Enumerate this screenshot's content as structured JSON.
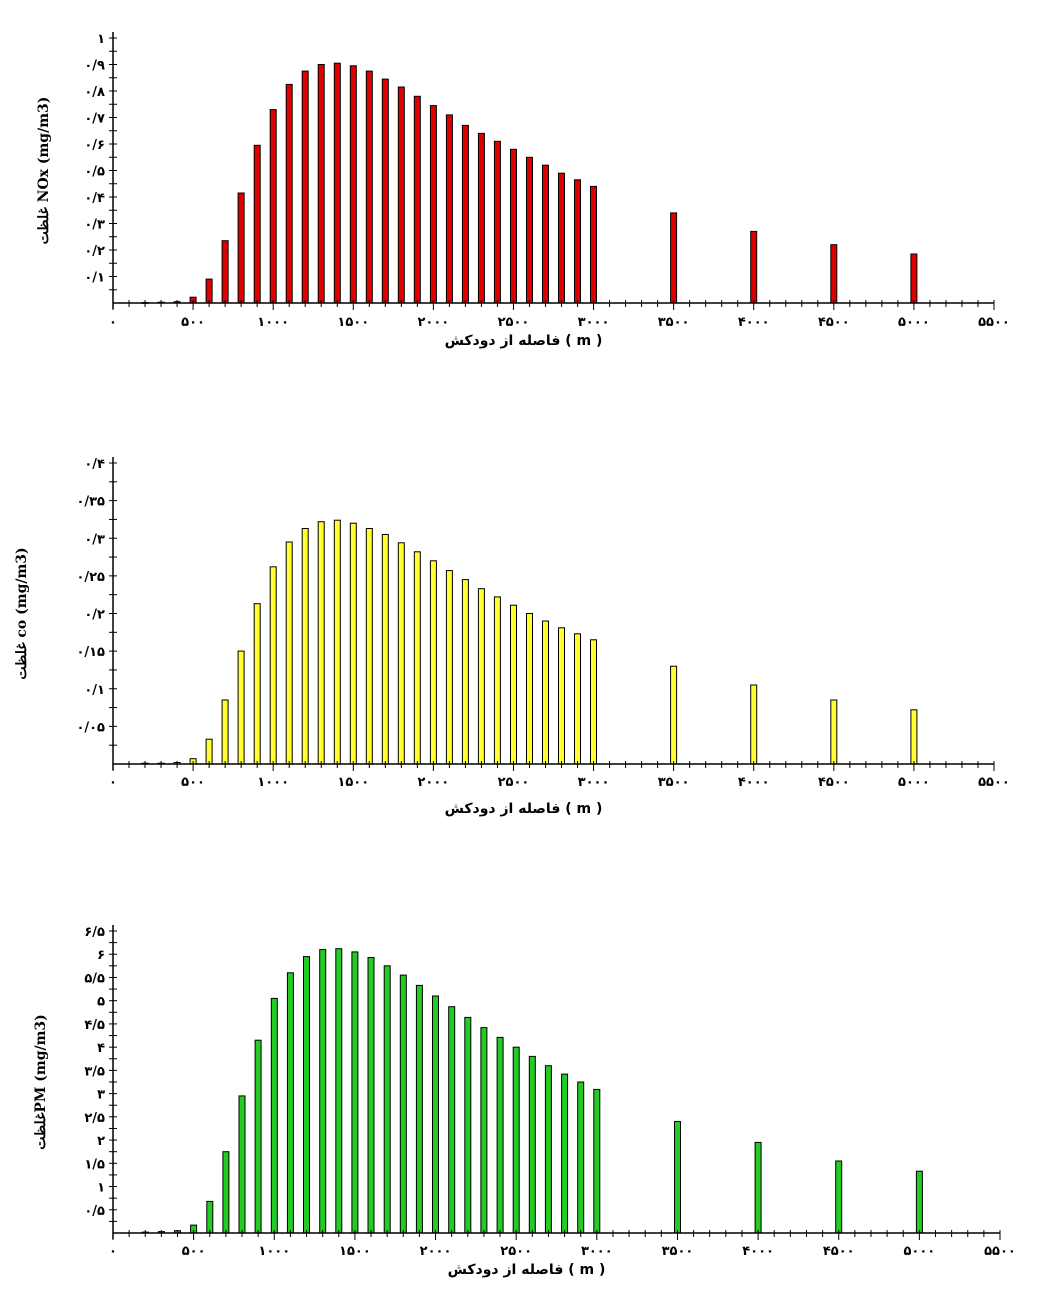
{
  "chart_data": [
    {
      "type": "bar",
      "color": "#dd0000",
      "ylabel": "غلظت NOx (mg/m3)",
      "xlabel": "فاصله از دودکش ( m )",
      "ylim": [
        0,
        1
      ],
      "xlim": [
        0,
        5500
      ],
      "yticks": [
        {
          "v": 0.1,
          "label": "۰/۱"
        },
        {
          "v": 0.2,
          "label": "۰/۲"
        },
        {
          "v": 0.3,
          "label": "۰/۳"
        },
        {
          "v": 0.4,
          "label": "۰/۴"
        },
        {
          "v": 0.5,
          "label": "۰/۵"
        },
        {
          "v": 0.6,
          "label": "۰/۶"
        },
        {
          "v": 0.7,
          "label": "۰/۷"
        },
        {
          "v": 0.8,
          "label": "۰/۸"
        },
        {
          "v": 0.9,
          "label": "۰/۹"
        },
        {
          "v": 1,
          "label": "۱"
        }
      ],
      "xticks": [
        {
          "v": 0,
          "label": "۰"
        },
        {
          "v": 500,
          "label": "۵۰۰"
        },
        {
          "v": 1000,
          "label": "۱۰۰۰"
        },
        {
          "v": 1500,
          "label": "۱۵۰۰"
        },
        {
          "v": 2000,
          "label": "۲۰۰۰"
        },
        {
          "v": 2500,
          "label": "۲۵۰۰"
        },
        {
          "v": 3000,
          "label": "۳۰۰۰"
        },
        {
          "v": 3500,
          "label": "۳۵۰۰"
        },
        {
          "v": 4000,
          "label": "۴۰۰۰"
        },
        {
          "v": 4500,
          "label": "۴۵۰۰"
        },
        {
          "v": 5000,
          "label": "۵۰۰۰"
        },
        {
          "v": 5500,
          "label": "۵۵۰۰"
        }
      ],
      "x": [
        200,
        300,
        400,
        500,
        600,
        700,
        800,
        900,
        1000,
        1100,
        1200,
        1300,
        1400,
        1500,
        1600,
        1700,
        1800,
        1900,
        2000,
        2100,
        2200,
        2300,
        2400,
        2500,
        2600,
        2700,
        2800,
        2900,
        3000,
        3500,
        4000,
        4500,
        5000
      ],
      "values": [
        0.002,
        0.003,
        0.005,
        0.022,
        0.09,
        0.235,
        0.415,
        0.595,
        0.73,
        0.825,
        0.875,
        0.9,
        0.905,
        0.895,
        0.875,
        0.845,
        0.815,
        0.78,
        0.745,
        0.71,
        0.67,
        0.64,
        0.61,
        0.58,
        0.55,
        0.52,
        0.49,
        0.465,
        0.44,
        0.34,
        0.27,
        0.22,
        0.185
      ]
    },
    {
      "type": "bar",
      "color": "#ffff33",
      "ylabel": "غلظت co (mg/m3)",
      "xlabel": "فاصله از دودکش ( m )",
      "ylim": [
        0,
        0.4
      ],
      "xlim": [
        0,
        5500
      ],
      "yticks": [
        {
          "v": 0.05,
          "label": "۰/۰۵"
        },
        {
          "v": 0.1,
          "label": "۰/۱"
        },
        {
          "v": 0.15,
          "label": "۰/۱۵"
        },
        {
          "v": 0.2,
          "label": "۰/۲"
        },
        {
          "v": 0.25,
          "label": "۰/۲۵"
        },
        {
          "v": 0.3,
          "label": "۰/۳"
        },
        {
          "v": 0.35,
          "label": "۰/۳۵"
        },
        {
          "v": 0.4,
          "label": "۰/۴"
        }
      ],
      "xticks": [
        {
          "v": 0,
          "label": "۰"
        },
        {
          "v": 500,
          "label": "۵۰۰"
        },
        {
          "v": 1000,
          "label": "۱۰۰۰"
        },
        {
          "v": 1500,
          "label": "۱۵۰۰"
        },
        {
          "v": 2000,
          "label": "۲۰۰۰"
        },
        {
          "v": 2500,
          "label": "۲۵۰۰"
        },
        {
          "v": 3000,
          "label": "۳۰۰۰"
        },
        {
          "v": 3500,
          "label": "۳۵۰۰"
        },
        {
          "v": 4000,
          "label": "۴۰۰۰"
        },
        {
          "v": 4500,
          "label": "۴۵۰۰"
        },
        {
          "v": 5000,
          "label": "۵۰۰۰"
        },
        {
          "v": 5500,
          "label": "۵۵۰۰"
        }
      ],
      "x": [
        200,
        300,
        400,
        500,
        600,
        700,
        800,
        900,
        1000,
        1100,
        1200,
        1300,
        1400,
        1500,
        1600,
        1700,
        1800,
        1900,
        2000,
        2100,
        2200,
        2300,
        2400,
        2500,
        2600,
        2700,
        2800,
        2900,
        3000,
        3500,
        4000,
        4500,
        5000
      ],
      "values": [
        0.001,
        0.001,
        0.002,
        0.007,
        0.033,
        0.085,
        0.15,
        0.213,
        0.262,
        0.295,
        0.313,
        0.322,
        0.324,
        0.32,
        0.313,
        0.305,
        0.294,
        0.282,
        0.27,
        0.257,
        0.245,
        0.233,
        0.222,
        0.211,
        0.2,
        0.19,
        0.181,
        0.173,
        0.165,
        0.13,
        0.105,
        0.085,
        0.072
      ]
    },
    {
      "type": "bar",
      "color": "#22cc22",
      "ylabel": "غلظتPM (mg/m3)",
      "xlabel": "فاصله از دودکش ( m )",
      "ylim": [
        0,
        6.5
      ],
      "xlim": [
        0,
        5500
      ],
      "yticks": [
        {
          "v": 0.5,
          "label": "۰/۵"
        },
        {
          "v": 1,
          "label": "۱"
        },
        {
          "v": 1.5,
          "label": "۱/۵"
        },
        {
          "v": 2,
          "label": "۲"
        },
        {
          "v": 2.5,
          "label": "۲/۵"
        },
        {
          "v": 3,
          "label": "۳"
        },
        {
          "v": 3.5,
          "label": "۳/۵"
        },
        {
          "v": 4,
          "label": "۴"
        },
        {
          "v": 4.5,
          "label": "۴/۵"
        },
        {
          "v": 5,
          "label": "۵"
        },
        {
          "v": 5.5,
          "label": "۵/۵"
        },
        {
          "v": 6,
          "label": "۶"
        },
        {
          "v": 6.5,
          "label": "۶/۵"
        }
      ],
      "xticks": [
        {
          "v": 0,
          "label": "۰"
        },
        {
          "v": 500,
          "label": "۵۰۰"
        },
        {
          "v": 1000,
          "label": "۱۰۰۰"
        },
        {
          "v": 1500,
          "label": "۱۵۰۰"
        },
        {
          "v": 2000,
          "label": "۲۰۰۰"
        },
        {
          "v": 2500,
          "label": "۲۵۰۰"
        },
        {
          "v": 3000,
          "label": "۳۰۰۰"
        },
        {
          "v": 3500,
          "label": "۳۵۰۰"
        },
        {
          "v": 4000,
          "label": "۴۰۰۰"
        },
        {
          "v": 4500,
          "label": "۴۵۰۰"
        },
        {
          "v": 5000,
          "label": "۵۰۰۰"
        },
        {
          "v": 5500,
          "label": "۵۵۰۰"
        }
      ],
      "x": [
        200,
        300,
        400,
        500,
        600,
        700,
        800,
        900,
        1000,
        1100,
        1200,
        1300,
        1400,
        1500,
        1600,
        1700,
        1800,
        1900,
        2000,
        2100,
        2200,
        2300,
        2400,
        2500,
        2600,
        2700,
        2800,
        2900,
        3000,
        3500,
        4000,
        4500,
        5000
      ],
      "values": [
        0.02,
        0.03,
        0.05,
        0.17,
        0.68,
        1.75,
        2.95,
        4.15,
        5.05,
        5.6,
        5.95,
        6.1,
        6.12,
        6.05,
        5.93,
        5.75,
        5.55,
        5.33,
        5.1,
        4.87,
        4.64,
        4.42,
        4.21,
        4.0,
        3.8,
        3.6,
        3.42,
        3.25,
        3.09,
        2.4,
        1.95,
        1.55,
        1.33
      ]
    }
  ]
}
